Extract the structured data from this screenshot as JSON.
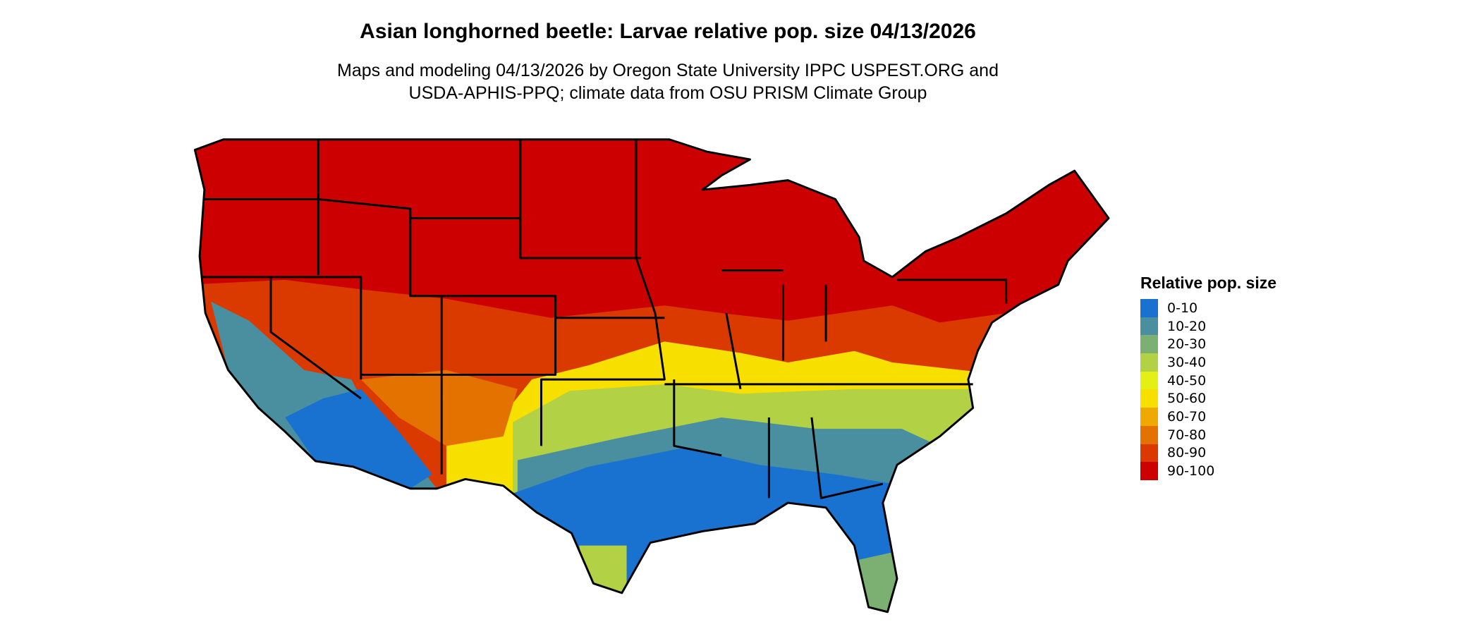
{
  "title": "Asian longhorned beetle: Larvae relative pop. size 04/13/2026",
  "subtitle": {
    "line1": "Maps and modeling 04/13/2026 by Oregon State University IPPC USPEST.ORG and",
    "line2": "USDA-APHIS-PPQ; climate data from OSU PRISM Climate Group"
  },
  "legend": {
    "title": "Relative pop. size",
    "items": [
      {
        "label": "0-10",
        "color": "#1a72d0"
      },
      {
        "label": "10-20",
        "color": "#4a8fa0"
      },
      {
        "label": "20-30",
        "color": "#7cb073"
      },
      {
        "label": "30-40",
        "color": "#b3d145"
      },
      {
        "label": "40-50",
        "color": "#e4ef14"
      },
      {
        "label": "50-60",
        "color": "#f7e000"
      },
      {
        "label": "60-70",
        "color": "#eeaa00"
      },
      {
        "label": "70-80",
        "color": "#e47200"
      },
      {
        "label": "80-90",
        "color": "#da3a00"
      },
      {
        "label": "90-100",
        "color": "#cc0000"
      }
    ]
  },
  "map": {
    "region": "Contiguous United States",
    "borders": "state"
  }
}
